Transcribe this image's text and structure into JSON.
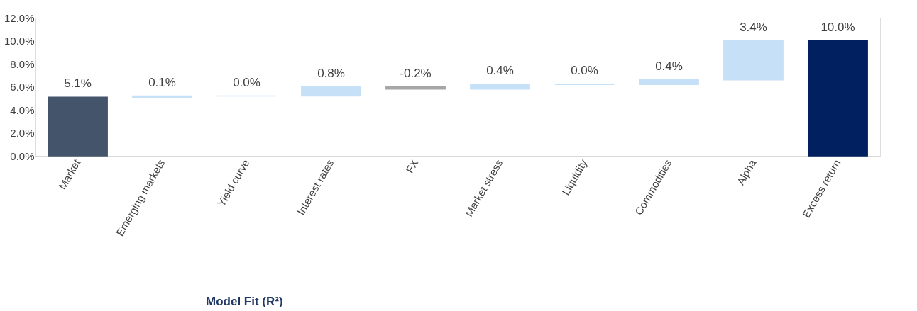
{
  "chart_data": {
    "type": "bar",
    "categories": [
      "Market",
      "Emerging markets",
      "Yield curve",
      "Interest rates",
      "FX",
      "Market stress",
      "Liquidity",
      "Commodities",
      "Alpha",
      "Excess return"
    ],
    "values": [
      5.1,
      0.1,
      0.0,
      0.8,
      -0.2,
      0.4,
      0.0,
      0.4,
      3.4,
      10.0
    ],
    "base": [
      0,
      5.1,
      5.2,
      5.2,
      6.0,
      5.8,
      6.2,
      6.2,
      6.6,
      0
    ],
    "colors": [
      "#44546a",
      "#c5e0f7",
      "#c5e0f7",
      "#c5e0f7",
      "#a6a6a6",
      "#c5e0f7",
      "#c5e0f7",
      "#c5e0f7",
      "#c5e0f7",
      "#002060"
    ],
    "value_labels": [
      "5.1%",
      "0.1%",
      "0.0%",
      "0.8%",
      "-0.2%",
      "0.4%",
      "0.0%",
      "0.4%",
      "3.4%",
      "10.0%"
    ],
    "ylim": [
      0,
      12
    ],
    "yticks": [
      {
        "value": 0,
        "label": "0.0%"
      },
      {
        "value": 2,
        "label": "2.0%"
      },
      {
        "value": 4,
        "label": "4.0%"
      },
      {
        "value": 6,
        "label": "6.0%"
      },
      {
        "value": 8,
        "label": "8.0%"
      },
      {
        "value": 10,
        "label": "10.0%"
      },
      {
        "value": 12,
        "label": "12.0%"
      }
    ],
    "grid": false,
    "annotations": [
      "Model Fit (R²)"
    ]
  }
}
